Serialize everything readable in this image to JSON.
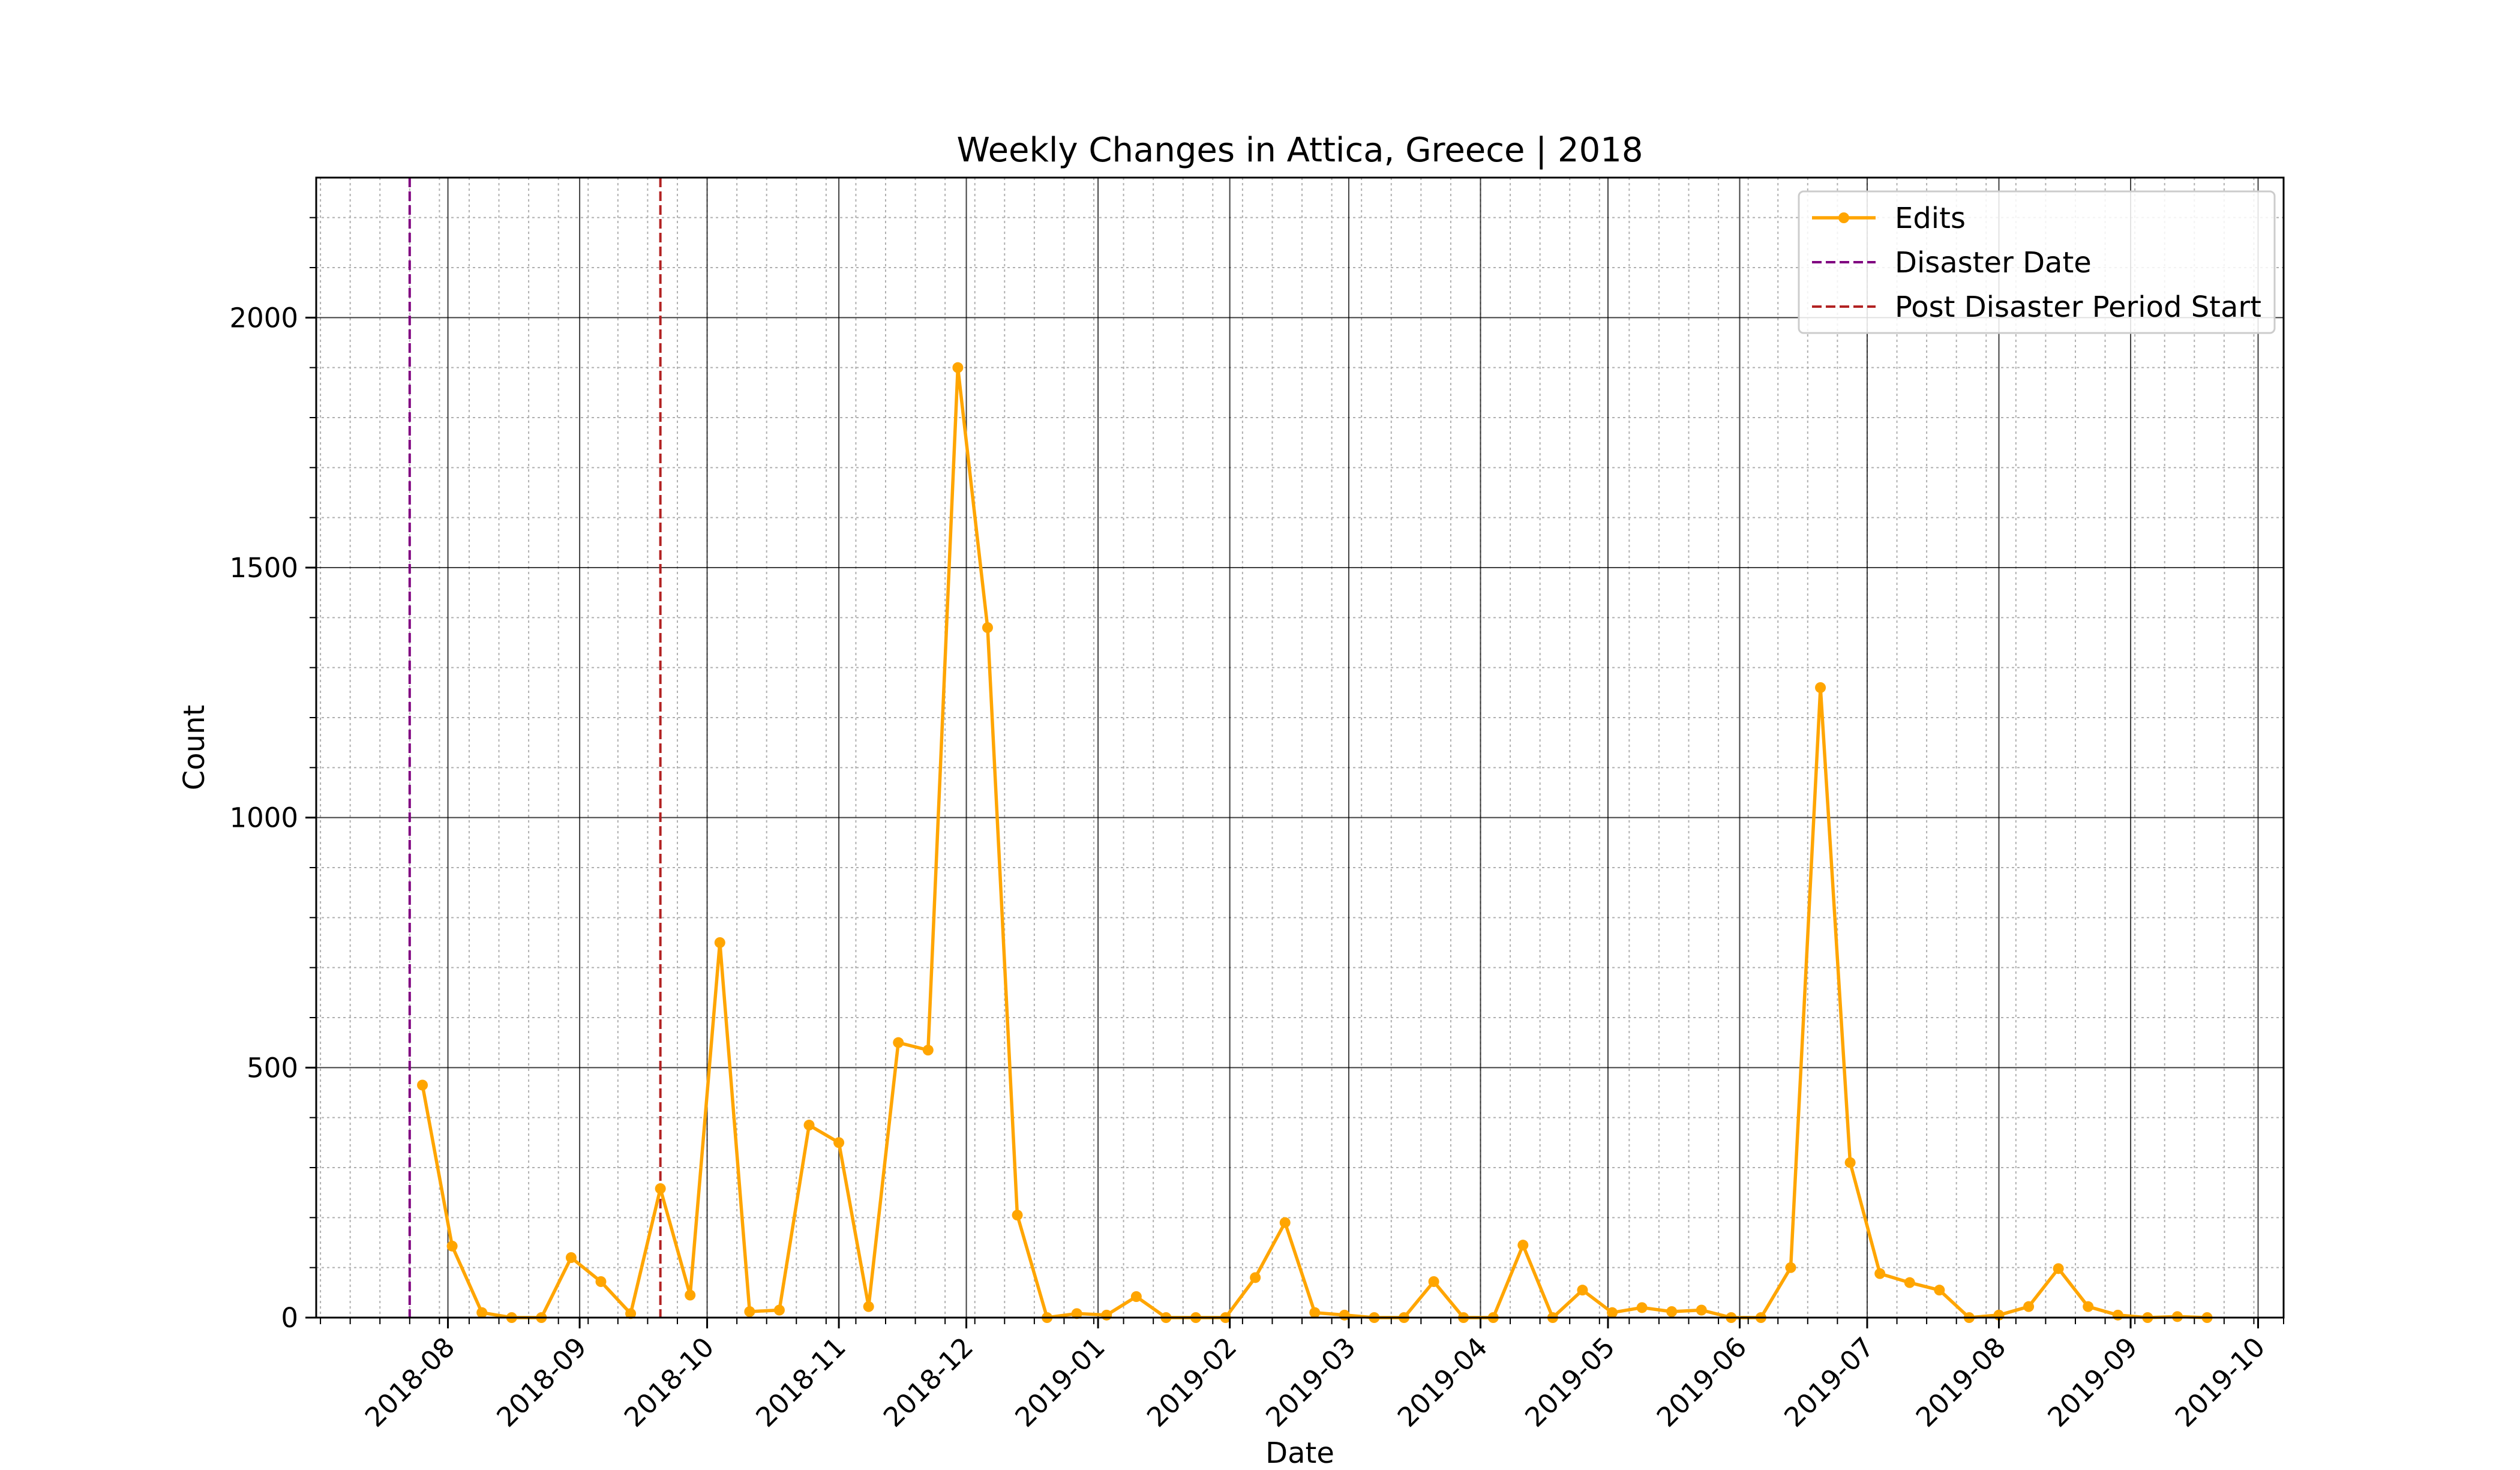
{
  "chart_data": {
    "type": "line",
    "title": "Weekly Changes in Attica, Greece | 2018",
    "xlabel": "Date",
    "ylabel": "Count",
    "xlim": [
      "2018-07-01",
      "2019-10-07"
    ],
    "ylim": [
      0,
      2280
    ],
    "yticks": [
      0,
      500,
      1000,
      1500,
      2000
    ],
    "xticks": [
      "2018-08",
      "2018-09",
      "2018-10",
      "2018-11",
      "2018-12",
      "2019-01",
      "2019-02",
      "2019-03",
      "2019-04",
      "2019-05",
      "2019-06",
      "2019-07",
      "2019-08",
      "2019-09",
      "2019-10"
    ],
    "xtick_dates": [
      "2018-08-01",
      "2018-09-01",
      "2018-10-01",
      "2018-11-01",
      "2018-12-01",
      "2019-01-01",
      "2019-02-01",
      "2019-03-01",
      "2019-04-01",
      "2019-05-01",
      "2019-06-01",
      "2019-07-01",
      "2019-08-01",
      "2019-09-01",
      "2019-10-01"
    ],
    "grid": true,
    "legend_position": "top-right",
    "series": [
      {
        "name": "Edits",
        "color": "#ffa500",
        "marker": "circle",
        "points": [
          [
            "2018-07-26",
            465
          ],
          [
            "2018-08-02",
            143
          ],
          [
            "2018-08-09",
            10
          ],
          [
            "2018-08-16",
            0
          ],
          [
            "2018-08-23",
            0
          ],
          [
            "2018-08-30",
            120
          ],
          [
            "2018-09-06",
            72
          ],
          [
            "2018-09-13",
            8
          ],
          [
            "2018-09-20",
            258
          ],
          [
            "2018-09-27",
            45
          ],
          [
            "2018-10-04",
            750
          ],
          [
            "2018-10-11",
            12
          ],
          [
            "2018-10-18",
            15
          ],
          [
            "2018-10-25",
            385
          ],
          [
            "2018-11-01",
            350
          ],
          [
            "2018-11-08",
            22
          ],
          [
            "2018-11-15",
            550
          ],
          [
            "2018-11-22",
            535
          ],
          [
            "2018-11-29",
            1900
          ],
          [
            "2018-12-06",
            1380
          ],
          [
            "2018-12-13",
            205
          ],
          [
            "2018-12-20",
            0
          ],
          [
            "2018-12-27",
            8
          ],
          [
            "2019-01-03",
            5
          ],
          [
            "2019-01-10",
            42
          ],
          [
            "2019-01-17",
            0
          ],
          [
            "2019-01-24",
            0
          ],
          [
            "2019-01-31",
            0
          ],
          [
            "2019-02-07",
            80
          ],
          [
            "2019-02-14",
            190
          ],
          [
            "2019-02-21",
            10
          ],
          [
            "2019-02-28",
            5
          ],
          [
            "2019-03-07",
            0
          ],
          [
            "2019-03-14",
            0
          ],
          [
            "2019-03-21",
            72
          ],
          [
            "2019-03-28",
            0
          ],
          [
            "2019-04-04",
            0
          ],
          [
            "2019-04-11",
            145
          ],
          [
            "2019-04-18",
            0
          ],
          [
            "2019-04-25",
            55
          ],
          [
            "2019-05-02",
            10
          ],
          [
            "2019-05-09",
            20
          ],
          [
            "2019-05-16",
            12
          ],
          [
            "2019-05-23",
            15
          ],
          [
            "2019-05-30",
            0
          ],
          [
            "2019-06-06",
            0
          ],
          [
            "2019-06-13",
            100
          ],
          [
            "2019-06-20",
            1260
          ],
          [
            "2019-06-27",
            310
          ],
          [
            "2019-07-04",
            88
          ],
          [
            "2019-07-11",
            70
          ],
          [
            "2019-07-18",
            55
          ],
          [
            "2019-07-25",
            0
          ],
          [
            "2019-08-01",
            5
          ],
          [
            "2019-08-08",
            22
          ],
          [
            "2019-08-15",
            98
          ],
          [
            "2019-08-22",
            22
          ],
          [
            "2019-08-29",
            5
          ],
          [
            "2019-09-05",
            0
          ],
          [
            "2019-09-12",
            2
          ],
          [
            "2019-09-19",
            0
          ]
        ]
      }
    ],
    "vlines": [
      {
        "name": "Disaster Date",
        "date": "2018-07-23",
        "color": "#800080"
      },
      {
        "name": "Post Disaster Period Start",
        "date": "2018-09-20",
        "color": "#b22222"
      }
    ]
  }
}
